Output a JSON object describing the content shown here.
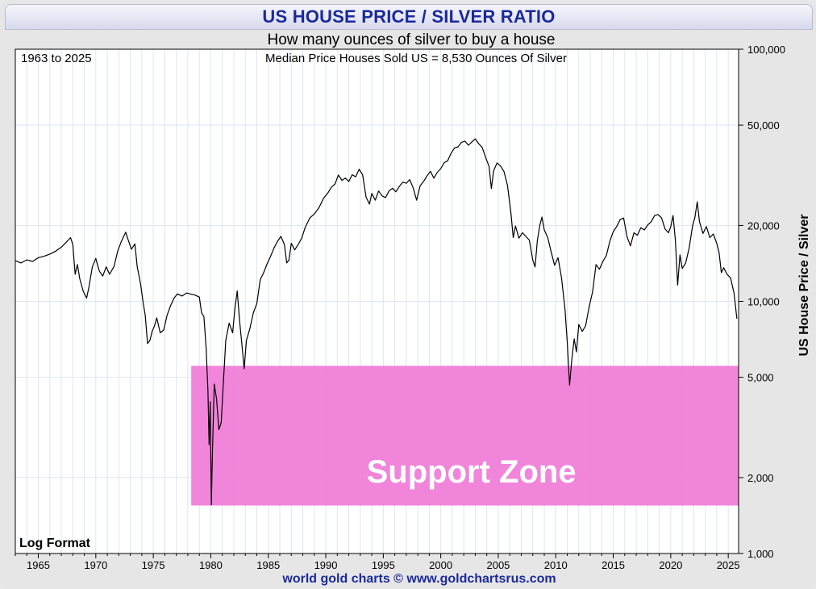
{
  "title": "US HOUSE PRICE / SILVER RATIO",
  "subtitle": "How many ounces of silver to buy a house",
  "footer": "world gold charts © www.goldchartsrus.com",
  "colors": {
    "title": "#1b2a9a",
    "zone": "#f07ed8",
    "line": "#000000",
    "grid": "#dde6f2"
  },
  "chart_data": {
    "type": "line",
    "title": "US HOUSE PRICE / SILVER RATIO",
    "subtitle": "How many ounces of silver to buy a house",
    "period_label": "1963 to 2025",
    "current_value_label": "Median Price Houses Sold US = 8,530 Ounces Of Silver",
    "scale_label": "Log Format",
    "ylabel": "US House Price / Silver",
    "yscale": "log",
    "ylim": [
      1000,
      100000
    ],
    "xlim": [
      1963.0,
      2025.9
    ],
    "x_ticks": [
      "1965",
      "1970",
      "1975",
      "1980",
      "1985",
      "1990",
      "1995",
      "2000",
      "2005",
      "2010",
      "2015",
      "2020",
      "2025"
    ],
    "y_ticks": [
      {
        "value": 1000,
        "label": "1,000"
      },
      {
        "value": 2000,
        "label": "2,000"
      },
      {
        "value": 5000,
        "label": "5,000"
      },
      {
        "value": 10000,
        "label": "10,000"
      },
      {
        "value": 20000,
        "label": "20,000"
      },
      {
        "value": 50000,
        "label": "50,000"
      },
      {
        "value": 100000,
        "label": "100,000"
      }
    ],
    "annotation": {
      "label": "Support Zone",
      "x_range": [
        1978.3,
        2025.9
      ],
      "y_range": [
        1550,
        5550
      ]
    },
    "series": [
      {
        "name": "US House Price / Silver",
        "points": [
          [
            1963.0,
            14500
          ],
          [
            1963.5,
            14200
          ],
          [
            1964.0,
            14600
          ],
          [
            1964.5,
            14400
          ],
          [
            1965.0,
            14900
          ],
          [
            1965.5,
            15100
          ],
          [
            1966.0,
            15400
          ],
          [
            1966.5,
            15800
          ],
          [
            1967.0,
            16400
          ],
          [
            1967.4,
            17100
          ],
          [
            1967.8,
            17900
          ],
          [
            1968.0,
            16800
          ],
          [
            1968.2,
            12800
          ],
          [
            1968.4,
            14000
          ],
          [
            1968.6,
            12300
          ],
          [
            1968.9,
            11000
          ],
          [
            1969.2,
            10300
          ],
          [
            1969.4,
            11400
          ],
          [
            1969.7,
            13700
          ],
          [
            1970.0,
            14800
          ],
          [
            1970.3,
            13200
          ],
          [
            1970.6,
            12600
          ],
          [
            1970.9,
            13700
          ],
          [
            1971.2,
            12800
          ],
          [
            1971.6,
            13800
          ],
          [
            1971.9,
            15800
          ],
          [
            1972.2,
            17200
          ],
          [
            1972.6,
            18800
          ],
          [
            1972.8,
            17600
          ],
          [
            1973.1,
            16100
          ],
          [
            1973.4,
            16900
          ],
          [
            1973.6,
            13700
          ],
          [
            1973.9,
            11700
          ],
          [
            1974.1,
            10000
          ],
          [
            1974.3,
            8800
          ],
          [
            1974.5,
            6800
          ],
          [
            1974.7,
            7000
          ],
          [
            1974.9,
            7600
          ],
          [
            1975.1,
            8000
          ],
          [
            1975.3,
            8600
          ],
          [
            1975.6,
            7500
          ],
          [
            1975.9,
            7700
          ],
          [
            1976.2,
            8800
          ],
          [
            1976.5,
            9600
          ],
          [
            1976.8,
            10300
          ],
          [
            1977.1,
            10700
          ],
          [
            1977.5,
            10500
          ],
          [
            1977.9,
            10800
          ],
          [
            1978.2,
            10700
          ],
          [
            1978.6,
            10600
          ],
          [
            1979.0,
            10400
          ],
          [
            1979.2,
            9000
          ],
          [
            1979.4,
            8700
          ],
          [
            1979.6,
            6500
          ],
          [
            1979.75,
            4400
          ],
          [
            1979.85,
            2700
          ],
          [
            1979.95,
            4000
          ],
          [
            1980.05,
            1560
          ],
          [
            1980.15,
            2600
          ],
          [
            1980.3,
            4700
          ],
          [
            1980.5,
            4100
          ],
          [
            1980.7,
            3100
          ],
          [
            1980.9,
            3300
          ],
          [
            1981.1,
            4800
          ],
          [
            1981.3,
            7000
          ],
          [
            1981.6,
            8200
          ],
          [
            1981.9,
            7500
          ],
          [
            1982.1,
            9400
          ],
          [
            1982.3,
            11000
          ],
          [
            1982.5,
            8400
          ],
          [
            1982.7,
            6800
          ],
          [
            1982.9,
            5400
          ],
          [
            1983.1,
            7000
          ],
          [
            1983.4,
            7800
          ],
          [
            1983.7,
            9000
          ],
          [
            1984.0,
            9800
          ],
          [
            1984.3,
            12200
          ],
          [
            1984.6,
            13000
          ],
          [
            1984.9,
            14100
          ],
          [
            1985.2,
            15100
          ],
          [
            1985.5,
            16300
          ],
          [
            1985.8,
            17300
          ],
          [
            1986.1,
            18100
          ],
          [
            1986.4,
            16800
          ],
          [
            1986.6,
            14200
          ],
          [
            1986.8,
            14600
          ],
          [
            1987.0,
            17000
          ],
          [
            1987.3,
            16000
          ],
          [
            1987.6,
            16800
          ],
          [
            1987.9,
            17800
          ],
          [
            1988.2,
            19600
          ],
          [
            1988.6,
            21400
          ],
          [
            1989.0,
            22200
          ],
          [
            1989.4,
            23500
          ],
          [
            1989.8,
            25600
          ],
          [
            1990.2,
            27000
          ],
          [
            1990.5,
            28400
          ],
          [
            1990.8,
            29200
          ],
          [
            1991.1,
            31700
          ],
          [
            1991.4,
            30200
          ],
          [
            1991.7,
            30800
          ],
          [
            1992.0,
            29900
          ],
          [
            1992.3,
            31800
          ],
          [
            1992.6,
            31200
          ],
          [
            1992.9,
            33400
          ],
          [
            1993.2,
            31800
          ],
          [
            1993.5,
            25900
          ],
          [
            1993.8,
            24300
          ],
          [
            1994.0,
            26800
          ],
          [
            1994.3,
            25200
          ],
          [
            1994.6,
            27400
          ],
          [
            1994.9,
            26200
          ],
          [
            1995.2,
            25800
          ],
          [
            1995.5,
            27400
          ],
          [
            1995.8,
            28100
          ],
          [
            1996.1,
            27200
          ],
          [
            1996.4,
            28600
          ],
          [
            1996.7,
            29700
          ],
          [
            1997.0,
            29400
          ],
          [
            1997.3,
            30400
          ],
          [
            1997.6,
            28200
          ],
          [
            1997.9,
            25200
          ],
          [
            1998.2,
            28700
          ],
          [
            1998.5,
            29900
          ],
          [
            1998.8,
            31400
          ],
          [
            1999.1,
            32800
          ],
          [
            1999.4,
            30800
          ],
          [
            1999.7,
            32500
          ],
          [
            2000.0,
            33600
          ],
          [
            2000.3,
            35500
          ],
          [
            2000.6,
            36100
          ],
          [
            2000.9,
            38700
          ],
          [
            2001.2,
            40600
          ],
          [
            2001.5,
            41000
          ],
          [
            2001.8,
            42700
          ],
          [
            2002.1,
            43200
          ],
          [
            2002.4,
            41600
          ],
          [
            2002.7,
            42900
          ],
          [
            2003.0,
            44100
          ],
          [
            2003.3,
            42200
          ],
          [
            2003.6,
            40800
          ],
          [
            2003.9,
            37200
          ],
          [
            2004.2,
            34300
          ],
          [
            2004.4,
            28000
          ],
          [
            2004.6,
            33000
          ],
          [
            2004.9,
            35400
          ],
          [
            2005.2,
            34400
          ],
          [
            2005.5,
            32700
          ],
          [
            2005.8,
            28800
          ],
          [
            2006.1,
            22500
          ],
          [
            2006.3,
            17900
          ],
          [
            2006.5,
            19900
          ],
          [
            2006.8,
            17800
          ],
          [
            2007.1,
            18700
          ],
          [
            2007.4,
            18100
          ],
          [
            2007.7,
            17500
          ],
          [
            2008.0,
            14600
          ],
          [
            2008.2,
            13700
          ],
          [
            2008.4,
            17400
          ],
          [
            2008.6,
            19900
          ],
          [
            2008.8,
            21600
          ],
          [
            2009.0,
            19200
          ],
          [
            2009.3,
            17900
          ],
          [
            2009.6,
            15700
          ],
          [
            2009.9,
            13900
          ],
          [
            2010.2,
            14900
          ],
          [
            2010.5,
            12400
          ],
          [
            2010.8,
            9300
          ],
          [
            2011.0,
            6900
          ],
          [
            2011.2,
            4650
          ],
          [
            2011.4,
            5900
          ],
          [
            2011.6,
            7100
          ],
          [
            2011.8,
            6300
          ],
          [
            2012.0,
            8100
          ],
          [
            2012.3,
            7600
          ],
          [
            2012.6,
            8000
          ],
          [
            2012.9,
            9500
          ],
          [
            2013.2,
            10900
          ],
          [
            2013.5,
            14000
          ],
          [
            2013.8,
            13400
          ],
          [
            2014.1,
            14400
          ],
          [
            2014.4,
            15200
          ],
          [
            2014.7,
            17300
          ],
          [
            2015.0,
            18900
          ],
          [
            2015.3,
            19800
          ],
          [
            2015.6,
            21100
          ],
          [
            2015.9,
            21400
          ],
          [
            2016.2,
            18000
          ],
          [
            2016.5,
            16600
          ],
          [
            2016.8,
            18700
          ],
          [
            2017.1,
            18300
          ],
          [
            2017.4,
            19600
          ],
          [
            2017.7,
            19200
          ],
          [
            2018.0,
            20100
          ],
          [
            2018.3,
            20700
          ],
          [
            2018.6,
            21900
          ],
          [
            2018.9,
            22100
          ],
          [
            2019.2,
            21400
          ],
          [
            2019.5,
            19400
          ],
          [
            2019.8,
            18700
          ],
          [
            2020.0,
            19800
          ],
          [
            2020.2,
            21900
          ],
          [
            2020.4,
            17500
          ],
          [
            2020.6,
            11600
          ],
          [
            2020.8,
            15300
          ],
          [
            2021.0,
            13500
          ],
          [
            2021.3,
            14200
          ],
          [
            2021.6,
            16300
          ],
          [
            2021.9,
            20000
          ],
          [
            2022.1,
            21500
          ],
          [
            2022.3,
            24800
          ],
          [
            2022.5,
            20700
          ],
          [
            2022.8,
            18600
          ],
          [
            2023.1,
            19800
          ],
          [
            2023.4,
            17900
          ],
          [
            2023.7,
            18500
          ],
          [
            2024.0,
            17000
          ],
          [
            2024.2,
            15600
          ],
          [
            2024.4,
            13000
          ],
          [
            2024.6,
            13600
          ],
          [
            2024.9,
            12800
          ],
          [
            2025.2,
            12400
          ],
          [
            2025.5,
            10800
          ],
          [
            2025.75,
            8530
          ]
        ]
      }
    ]
  }
}
